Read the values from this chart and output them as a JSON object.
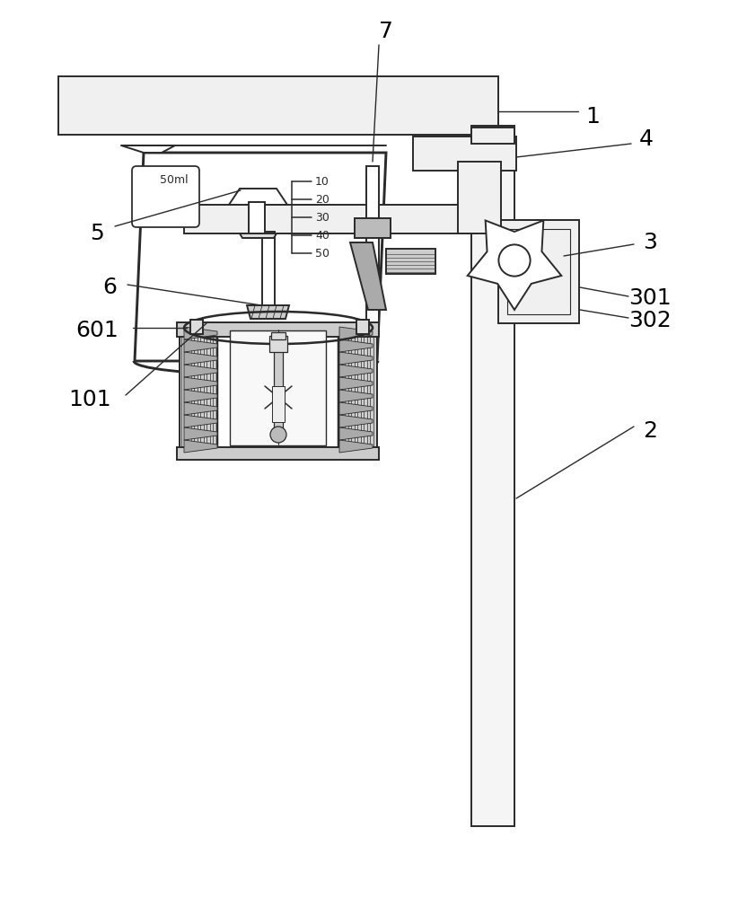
{
  "bg_color": "#ffffff",
  "lc": "#2a2a2a",
  "lw": 1.4,
  "fig_w": 8.22,
  "fig_h": 10.0,
  "dpi": 100
}
